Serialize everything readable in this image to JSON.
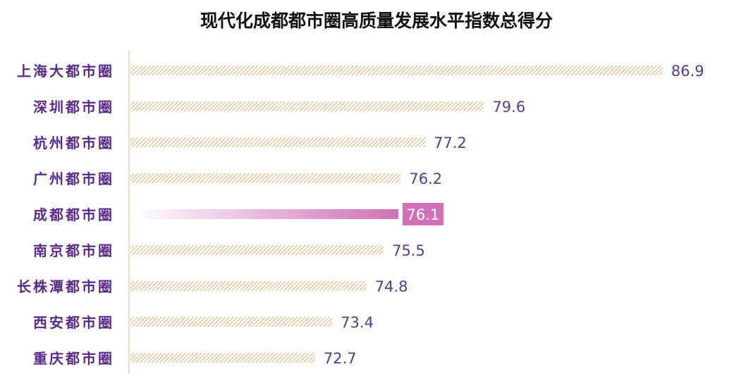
{
  "chart_data": {
    "type": "bar",
    "orientation": "horizontal",
    "title": "现代化成都都市圈高质量发展水平指数总得分",
    "categories": [
      "上海大都市圈",
      "深圳都市圈",
      "杭州都市圈",
      "广州都市圈",
      "成都都市圈",
      "南京都市圈",
      "长株潭都市圈",
      "西安都市圈",
      "重庆都市圈"
    ],
    "values": [
      86.9,
      79.6,
      77.2,
      76.2,
      76.1,
      75.5,
      74.8,
      73.4,
      72.7
    ],
    "highlight": "成都都市圈",
    "xlim": [
      65.1,
      90
    ],
    "xlabel": "",
    "ylabel": "",
    "grid": false,
    "colors": {
      "bar_hatch": "#e09a55",
      "highlight": "#d070b8",
      "label": "#5a2a8a",
      "value": "#5a3a8a",
      "axis": "#f0c8a0"
    }
  }
}
